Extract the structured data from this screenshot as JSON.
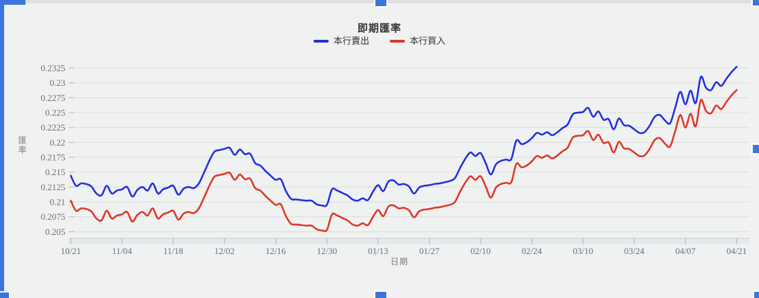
{
  "chart": {
    "title": "即期匯率",
    "legend": [
      {
        "label": "本行賣出",
        "color": "#2230dd"
      },
      {
        "label": "本行買入",
        "color": "#dd3826"
      }
    ],
    "y_axis": {
      "title": "匯率",
      "tick_labels": [
        "0.2325",
        "0.23",
        "0.2275",
        "0.225",
        "0.2225",
        "0.22",
        "0.2175",
        "0.215",
        "0.2125",
        "0.21",
        "0.2075",
        "0.205"
      ]
    },
    "x_axis": {
      "title": "日期",
      "tick_labels": [
        "10/21",
        "11/04",
        "11/18",
        "12/02",
        "12/16",
        "12/30",
        "01/13",
        "01/27",
        "02/10",
        "02/24",
        "03/10",
        "03/24",
        "04/07",
        "04/21"
      ]
    }
  },
  "chart_data": {
    "type": "line",
    "title": "即期匯率",
    "xlabel": "日期",
    "ylabel": "匯率",
    "ylim": [
      0.205,
      0.2325
    ],
    "y_tick_step": 0.0025,
    "grid": true,
    "legend_position": "top",
    "x": [
      "10/21",
      "10/22",
      "10/23",
      "10/24",
      "10/25",
      "10/28",
      "10/29",
      "10/30",
      "10/31",
      "11/01",
      "11/04",
      "11/05",
      "11/06",
      "11/07",
      "11/08",
      "11/11",
      "11/12",
      "11/13",
      "11/14",
      "11/15",
      "11/18",
      "11/19",
      "11/20",
      "11/21",
      "11/22",
      "11/25",
      "11/26",
      "11/27",
      "11/28",
      "11/29",
      "12/02",
      "12/03",
      "12/04",
      "12/05",
      "12/06",
      "12/09",
      "12/10",
      "12/11",
      "12/12",
      "12/13",
      "12/16",
      "12/17",
      "12/18",
      "12/19",
      "12/20",
      "12/23",
      "12/24",
      "12/25",
      "12/26",
      "12/27",
      "12/30",
      "12/31",
      "01/01",
      "01/02",
      "01/03",
      "01/06",
      "01/07",
      "01/08",
      "01/09",
      "01/10",
      "01/13",
      "01/14",
      "01/15",
      "01/16",
      "01/17",
      "01/20",
      "01/21",
      "01/22",
      "01/23",
      "01/24",
      "01/27",
      "01/28",
      "01/29",
      "01/30",
      "01/31",
      "02/03",
      "02/04",
      "02/05",
      "02/06",
      "02/07",
      "02/10",
      "02/11",
      "02/12",
      "02/13",
      "02/14",
      "02/17",
      "02/18",
      "02/19",
      "02/20",
      "02/21",
      "02/24",
      "02/25",
      "02/26",
      "02/27",
      "02/28",
      "03/03",
      "03/04",
      "03/05",
      "03/06",
      "03/07",
      "03/10",
      "03/11",
      "03/12",
      "03/13",
      "03/14",
      "03/17",
      "03/18",
      "03/19",
      "03/20",
      "03/21",
      "03/24",
      "03/25",
      "03/26",
      "03/27",
      "03/28",
      "03/31",
      "04/01",
      "04/02",
      "04/03",
      "04/04",
      "04/07",
      "04/08",
      "04/09",
      "04/10",
      "04/11",
      "04/14",
      "04/15",
      "04/16",
      "04/17",
      "04/18",
      "04/21"
    ],
    "series": [
      {
        "name": "本行賣出",
        "color": "#2230dd",
        "values": [
          0.2144,
          0.2127,
          0.2131,
          0.213,
          0.2126,
          0.2114,
          0.2111,
          0.2127,
          0.2114,
          0.2119,
          0.2121,
          0.2125,
          0.2109,
          0.212,
          0.2125,
          0.2119,
          0.2131,
          0.2114,
          0.2121,
          0.2124,
          0.2127,
          0.2112,
          0.2122,
          0.2125,
          0.2123,
          0.2131,
          0.2149,
          0.2168,
          0.2184,
          0.2187,
          0.2189,
          0.2191,
          0.2179,
          0.2188,
          0.218,
          0.2181,
          0.2165,
          0.2161,
          0.2152,
          0.2144,
          0.2137,
          0.2138,
          0.2118,
          0.2105,
          0.2104,
          0.2103,
          0.2102,
          0.2102,
          0.2096,
          0.2094,
          0.2095,
          0.2121,
          0.2119,
          0.2115,
          0.2111,
          0.2104,
          0.2102,
          0.2106,
          0.2103,
          0.2117,
          0.2128,
          0.2118,
          0.2134,
          0.2136,
          0.2129,
          0.213,
          0.2126,
          0.2114,
          0.2124,
          0.2127,
          0.2128,
          0.213,
          0.2131,
          0.2133,
          0.2135,
          0.214,
          0.2157,
          0.2172,
          0.2183,
          0.2177,
          0.2182,
          0.2165,
          0.2146,
          0.2163,
          0.2169,
          0.2171,
          0.2172,
          0.2203,
          0.2197,
          0.22,
          0.2207,
          0.2216,
          0.2213,
          0.2217,
          0.2212,
          0.2217,
          0.2224,
          0.223,
          0.2247,
          0.225,
          0.2251,
          0.2258,
          0.2243,
          0.2252,
          0.2238,
          0.2239,
          0.2222,
          0.224,
          0.2229,
          0.2228,
          0.2222,
          0.2216,
          0.2217,
          0.2228,
          0.2243,
          0.2246,
          0.2237,
          0.2232,
          0.2258,
          0.2285,
          0.2264,
          0.2287,
          0.2266,
          0.231,
          0.2292,
          0.2288,
          0.2301,
          0.2295,
          0.2307,
          0.2318,
          0.2327
        ]
      },
      {
        "name": "本行買入",
        "color": "#dd3826",
        "values": [
          0.2102,
          0.2085,
          0.2089,
          0.2088,
          0.2084,
          0.2072,
          0.2069,
          0.2085,
          0.2072,
          0.2077,
          0.2079,
          0.2083,
          0.2067,
          0.2078,
          0.2083,
          0.2077,
          0.2089,
          0.2072,
          0.2079,
          0.2082,
          0.2085,
          0.207,
          0.208,
          0.2083,
          0.2081,
          0.2089,
          0.2107,
          0.2126,
          0.2142,
          0.2145,
          0.2147,
          0.2149,
          0.2137,
          0.2146,
          0.2138,
          0.2139,
          0.2123,
          0.2119,
          0.211,
          0.2102,
          0.2095,
          0.2096,
          0.2076,
          0.2063,
          0.2062,
          0.2061,
          0.206,
          0.206,
          0.2054,
          0.2052,
          0.2053,
          0.2079,
          0.2077,
          0.2073,
          0.2069,
          0.2062,
          0.206,
          0.2064,
          0.2061,
          0.2075,
          0.2086,
          0.2076,
          0.2092,
          0.2094,
          0.2089,
          0.209,
          0.2086,
          0.2074,
          0.2084,
          0.2087,
          0.2088,
          0.209,
          0.2091,
          0.2093,
          0.2095,
          0.21,
          0.2117,
          0.2132,
          0.2143,
          0.2137,
          0.2143,
          0.2126,
          0.2107,
          0.2124,
          0.213,
          0.2132,
          0.2133,
          0.2164,
          0.2158,
          0.2161,
          0.2168,
          0.2177,
          0.2174,
          0.2178,
          0.2173,
          0.2178,
          0.2185,
          0.2191,
          0.2208,
          0.2211,
          0.2212,
          0.2219,
          0.2204,
          0.2213,
          0.2199,
          0.22,
          0.2183,
          0.2201,
          0.219,
          0.2189,
          0.2183,
          0.2177,
          0.2178,
          0.2189,
          0.2204,
          0.2207,
          0.2198,
          0.2193,
          0.2219,
          0.2246,
          0.2225,
          0.2248,
          0.2227,
          0.2271,
          0.2253,
          0.2249,
          0.2262,
          0.2256,
          0.2268,
          0.2279,
          0.2288
        ]
      }
    ]
  },
  "overlay": {
    "selection_color": "#3c76dd"
  }
}
